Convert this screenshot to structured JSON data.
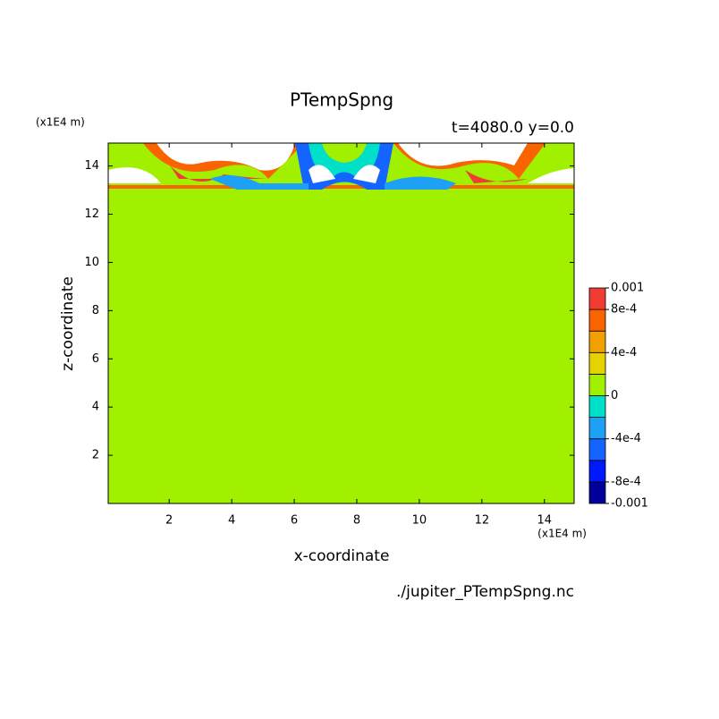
{
  "chart_data": {
    "type": "contour",
    "title": "PTempSpng",
    "subtitle": "t=4080.0 y=0.0",
    "x_label": "x-coordinate",
    "y_label": "z-coordinate",
    "x_unit": "(x1E4 m)",
    "y_unit": "(x1E4 m)",
    "source": "./jupiter_PTempSpng.nc",
    "xlim": [
      0.05,
      14.95
    ],
    "xticks": [
      2,
      4,
      6,
      8,
      10,
      12,
      14
    ],
    "ylim": [
      0,
      14.95
    ],
    "yticks": [
      2,
      4,
      6,
      8,
      10,
      12,
      14
    ],
    "levels": [
      -0.001,
      -0.0008,
      -0.0006,
      -0.0004,
      -0.0002,
      0,
      0.0002,
      0.0004,
      0.0006,
      0.0008,
      0.001
    ],
    "colors": [
      "#00009a",
      "#0018ff",
      "#1464ff",
      "#1ea0f5",
      "#00e0c8",
      "#a0f000",
      "#e6d200",
      "#f0a000",
      "#fa6400",
      "#f03c32"
    ],
    "colorbar_ticks": [
      -0.001,
      {
        "value": -0.0008,
        "label": "-8e-4"
      },
      {
        "value": -0.0004,
        "label": "-4e-4"
      },
      0,
      {
        "value": 0.0004,
        "label": "4e-4"
      },
      {
        "value": 0.0008,
        "label": "8e-4"
      },
      0.001
    ]
  }
}
